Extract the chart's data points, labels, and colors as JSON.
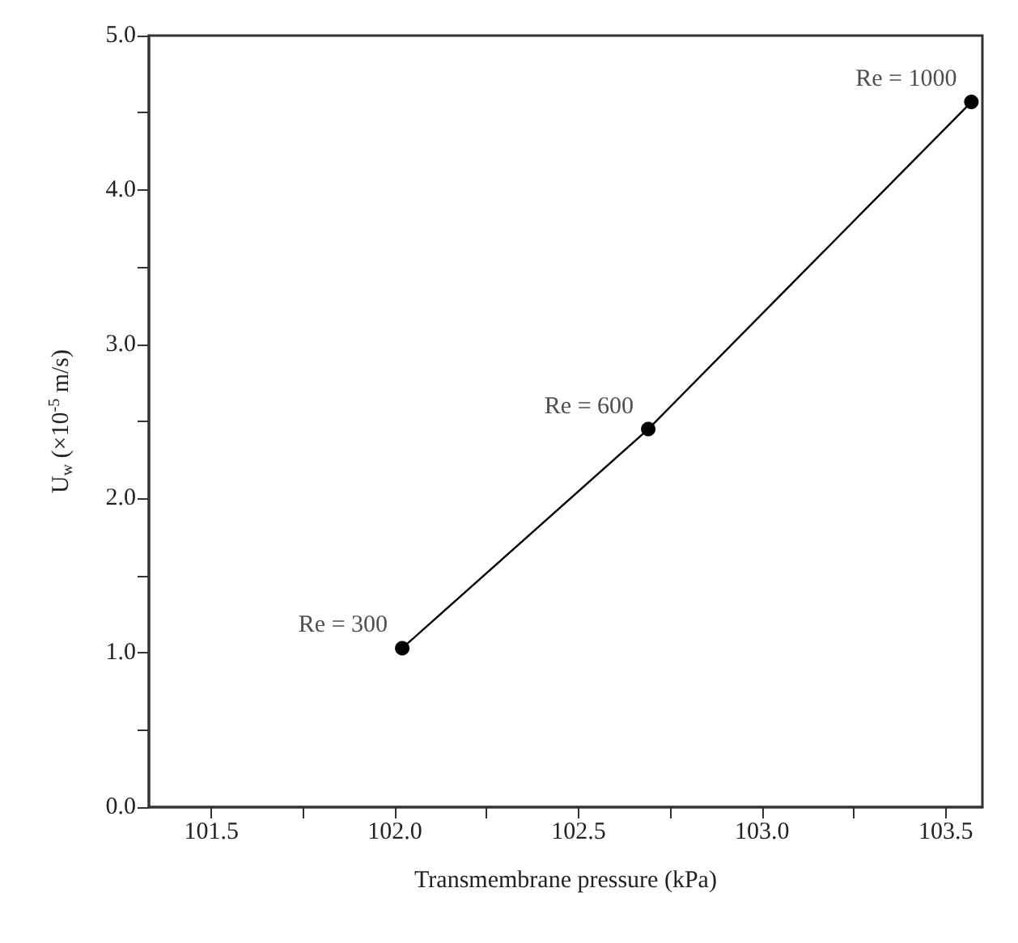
{
  "chart_data": {
    "type": "line",
    "xlabel": "Transmembrane pressure (kPa)",
    "ylabel": "U$_{w}$ (×10$^{-5}$ m/s)",
    "x": [
      102.02,
      102.69,
      103.57
    ],
    "series": [
      {
        "color": "#000000",
        "values": [
          1.03,
          2.45,
          4.57
        ]
      }
    ],
    "marker": "circle",
    "line_style": "solid",
    "grid": false,
    "xlim": [
      101.33,
      103.6
    ],
    "xticks": [
      101.5,
      {
        "value": 101.75,
        "label": null
      },
      {
        "value": 102,
        "label": "102.0"
      },
      {
        "value": 102.25,
        "label": null
      },
      102.5,
      {
        "value": 102.75,
        "label": null
      },
      {
        "value": 103,
        "label": "103.0"
      },
      {
        "value": 103.25,
        "label": null
      },
      103.5
    ],
    "ylim": [
      0,
      5
    ],
    "yticks": [
      {
        "value": 0,
        "label": "0.0"
      },
      {
        "value": 0.5,
        "label": null
      },
      {
        "value": 1,
        "label": "1.0"
      },
      {
        "value": 1.5,
        "label": null
      },
      {
        "value": 2,
        "label": "2.0"
      },
      {
        "value": 2.5,
        "label": null
      },
      {
        "value": 3,
        "label": "3.0"
      },
      {
        "value": 3.5,
        "label": null
      },
      {
        "value": 4,
        "label": "4.0"
      },
      {
        "value": 4.5,
        "label": null
      },
      {
        "value": 5,
        "label": "5.0"
      }
    ],
    "annotations": [
      {
        "text": "Re = 300",
        "x": 102.02,
        "y": 1.03
      },
      {
        "text": "Re = 600",
        "x": 102.69,
        "y": 2.45
      },
      {
        "text": "Re = 1000",
        "x": 103.57,
        "y": 4.57
      }
    ]
  }
}
